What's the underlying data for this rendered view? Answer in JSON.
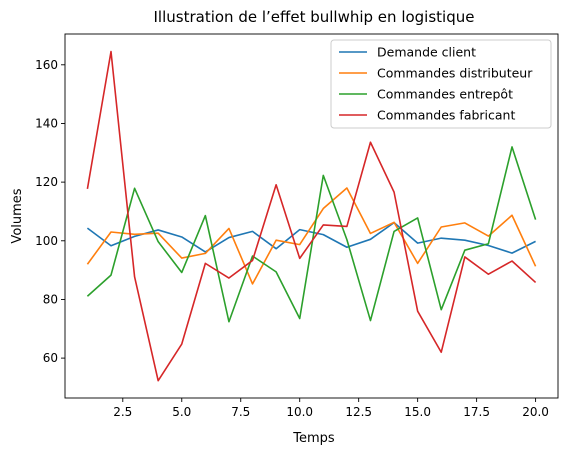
{
  "chart_data": {
    "type": "line",
    "title": "Illustration de l’effet bullwhip en logistique",
    "xlabel": "Temps",
    "ylabel": "Volumes",
    "xlim": [
      0.05,
      20.95
    ],
    "ylim": [
      46.4,
      170.5
    ],
    "xticks": [
      2.5,
      5.0,
      7.5,
      10.0,
      12.5,
      15.0,
      17.5,
      20.0
    ],
    "xtick_labels": [
      "2.5",
      "5.0",
      "7.5",
      "10.0",
      "12.5",
      "15.0",
      "17.5",
      "20.0"
    ],
    "yticks": [
      60,
      80,
      100,
      120,
      140,
      160
    ],
    "ytick_labels": [
      "60",
      "80",
      "100",
      "120",
      "140",
      "160"
    ],
    "grid": false,
    "legend_position": "top-right",
    "x": [
      1,
      2,
      3,
      4,
      5,
      6,
      7,
      8,
      9,
      10,
      11,
      12,
      13,
      14,
      15,
      16,
      17,
      18,
      19,
      20
    ],
    "series": [
      {
        "name": "Demande client",
        "color": "#1f77b4",
        "values": [
          104.3,
          98.3,
          101.5,
          103.7,
          101.3,
          96.2,
          101.1,
          103.2,
          97.3,
          103.8,
          102.1,
          97.8,
          100.5,
          106.2,
          99.2,
          100.9,
          100.2,
          98.4,
          95.8,
          99.8
        ]
      },
      {
        "name": "Commandes distributeur",
        "color": "#ff7f0e",
        "values": [
          92.0,
          103.0,
          102.2,
          102.6,
          94.1,
          95.7,
          104.2,
          85.3,
          100.2,
          98.7,
          111.0,
          118.0,
          102.5,
          106.3,
          92.3,
          104.7,
          106.1,
          101.6,
          108.7,
          91.3
        ]
      },
      {
        "name": "Commandes entrepôt",
        "color": "#2ca02c",
        "values": [
          81.1,
          88.3,
          117.9,
          99.7,
          89.2,
          108.6,
          72.4,
          94.8,
          89.4,
          73.5,
          122.3,
          100.4,
          72.8,
          103.2,
          107.8,
          76.5,
          96.8,
          99.0,
          132.0,
          107.2
        ]
      },
      {
        "name": "Commandes fabricant",
        "color": "#d62728",
        "values": [
          117.7,
          164.5,
          87.7,
          52.3,
          64.8,
          92.3,
          87.3,
          93.3,
          119.1,
          94.0,
          105.4,
          104.9,
          133.6,
          116.6,
          76.0,
          62.0,
          94.5,
          88.6,
          93.1,
          85.8
        ]
      }
    ]
  }
}
